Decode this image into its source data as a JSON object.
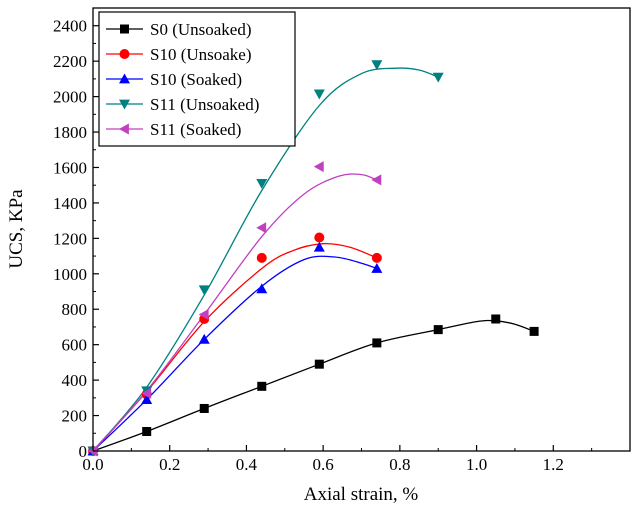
{
  "chart_data": {
    "type": "scatter",
    "xlabel": "Axial strain, %",
    "ylabel": "UCS, KPa",
    "xlim": [
      0.0,
      1.4
    ],
    "ylim": [
      0,
      2500
    ],
    "xticks": [
      "0.0",
      "0.2",
      "0.4",
      "0.6",
      "0.8",
      "1.0",
      "1.2"
    ],
    "yticks": [
      "0",
      "200",
      "400",
      "600",
      "800",
      "1000",
      "1200",
      "1400",
      "1600",
      "1800",
      "2000",
      "2200",
      "2400"
    ],
    "grid": false,
    "legend_position": "top-left",
    "series": [
      {
        "name": "S0 (Unsoaked)",
        "marker": "square",
        "color": "#000000",
        "points": [
          [
            0.0,
            0
          ],
          [
            0.14,
            110
          ],
          [
            0.29,
            240
          ],
          [
            0.44,
            365
          ],
          [
            0.59,
            490
          ],
          [
            0.74,
            610
          ],
          [
            0.9,
            685
          ],
          [
            1.05,
            745
          ],
          [
            1.15,
            675
          ]
        ],
        "curve": [
          [
            0.0,
            0
          ],
          [
            0.14,
            110
          ],
          [
            0.29,
            240
          ],
          [
            0.44,
            365
          ],
          [
            0.59,
            490
          ],
          [
            0.74,
            610
          ],
          [
            0.9,
            685
          ],
          [
            1.0,
            730
          ],
          [
            1.05,
            735
          ],
          [
            1.1,
            715
          ],
          [
            1.15,
            675
          ]
        ]
      },
      {
        "name": "S10 (Unsoake)",
        "marker": "circle",
        "color": "#ff0000",
        "points": [
          [
            0.0,
            0
          ],
          [
            0.14,
            320
          ],
          [
            0.29,
            745
          ],
          [
            0.44,
            1090
          ],
          [
            0.59,
            1205
          ],
          [
            0.74,
            1090
          ]
        ],
        "curve": [
          [
            0.0,
            0
          ],
          [
            0.14,
            335
          ],
          [
            0.29,
            730
          ],
          [
            0.44,
            1030
          ],
          [
            0.52,
            1130
          ],
          [
            0.6,
            1170
          ],
          [
            0.67,
            1150
          ],
          [
            0.74,
            1090
          ]
        ]
      },
      {
        "name": "S10 (Soaked)",
        "marker": "triangle-up",
        "color": "#0000ff",
        "points": [
          [
            0.0,
            0
          ],
          [
            0.14,
            290
          ],
          [
            0.29,
            630
          ],
          [
            0.44,
            915
          ],
          [
            0.59,
            1150
          ],
          [
            0.74,
            1030
          ]
        ],
        "curve": [
          [
            0.0,
            0
          ],
          [
            0.14,
            290
          ],
          [
            0.29,
            630
          ],
          [
            0.44,
            930
          ],
          [
            0.55,
            1080
          ],
          [
            0.63,
            1095
          ],
          [
            0.7,
            1060
          ],
          [
            0.74,
            1030
          ]
        ]
      },
      {
        "name": "S11 (Unsoaked)",
        "marker": "triangle-down",
        "color": "#008080",
        "points": [
          [
            0.0,
            0
          ],
          [
            0.14,
            340
          ],
          [
            0.29,
            910
          ],
          [
            0.44,
            1510
          ],
          [
            0.59,
            2015
          ],
          [
            0.74,
            2180
          ],
          [
            0.9,
            2110
          ]
        ],
        "curve": [
          [
            0.0,
            0
          ],
          [
            0.14,
            360
          ],
          [
            0.29,
            880
          ],
          [
            0.44,
            1470
          ],
          [
            0.59,
            1950
          ],
          [
            0.7,
            2130
          ],
          [
            0.79,
            2160
          ],
          [
            0.85,
            2150
          ],
          [
            0.9,
            2110
          ]
        ]
      },
      {
        "name": "S11 (Soaked)",
        "marker": "triangle-left",
        "color": "#c040c0",
        "points": [
          [
            0.0,
            0
          ],
          [
            0.14,
            325
          ],
          [
            0.29,
            770
          ],
          [
            0.44,
            1260
          ],
          [
            0.59,
            1605
          ],
          [
            0.74,
            1530
          ]
        ],
        "curve": [
          [
            0.0,
            0
          ],
          [
            0.14,
            340
          ],
          [
            0.29,
            770
          ],
          [
            0.44,
            1210
          ],
          [
            0.55,
            1450
          ],
          [
            0.64,
            1550
          ],
          [
            0.7,
            1560
          ],
          [
            0.74,
            1530
          ]
        ]
      }
    ]
  }
}
